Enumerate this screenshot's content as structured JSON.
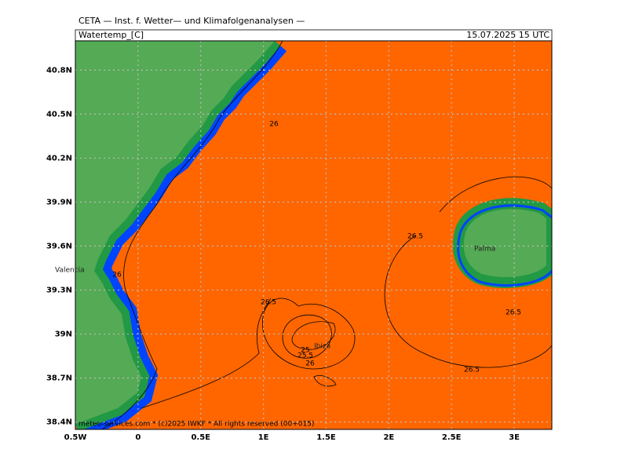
{
  "header": {
    "title": "CETA — Inst. f. Wetter— und Klimafolgenanalysen —",
    "variable": "Watertemp_[C]",
    "datetime": "15.07.2025 15 UTC"
  },
  "map": {
    "xlim": [
      -0.5,
      3.3
    ],
    "ylim": [
      38.35,
      41.0
    ],
    "xticks": [
      {
        "value": -0.5,
        "label": "0.5W"
      },
      0,
      {
        "value": 0.5,
        "label": "0.5E"
      },
      {
        "value": 1,
        "label": "1E"
      },
      {
        "value": 1.5,
        "label": "1.5E"
      },
      {
        "value": 2,
        "label": "2E"
      },
      {
        "value": 2.5,
        "label": "2.5E"
      },
      {
        "value": 3,
        "label": "3E"
      }
    ],
    "yticks": [
      {
        "value": 38.4,
        "label": "38.4N"
      },
      {
        "value": 38.7,
        "label": "38.7N"
      },
      {
        "value": 39,
        "label": "39N"
      },
      {
        "value": 39.3,
        "label": "39.3N"
      },
      {
        "value": 39.6,
        "label": "39.6N"
      },
      {
        "value": 39.9,
        "label": "39.9N"
      },
      {
        "value": 40.2,
        "label": "40.2N"
      },
      {
        "value": 40.5,
        "label": "40.5N"
      },
      {
        "value": 40.8,
        "label": "40.8N"
      }
    ],
    "grid": true,
    "places": [
      "Valencia",
      "Ibiza",
      "Palma"
    ],
    "contour_labels": [
      26,
      26,
      26.5,
      26.5,
      26.5,
      25,
      25.5,
      26,
      26.5
    ]
  },
  "footer": "meteo-services.com * (c)2025 IWKF * All rights reserved (00+015)"
}
